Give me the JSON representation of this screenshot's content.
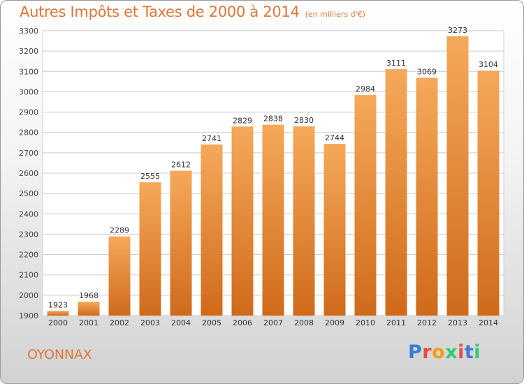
{
  "title": "Autres Impôts et Taxes de 2000 à 2014",
  "title_unit": "(en milliers d'€)",
  "location": "OYONNAX",
  "logo": {
    "text": "Proxiti",
    "letter_colors": [
      "#3a7bd5",
      "#e84c3d",
      "#f39c12",
      "#2ecc71",
      "#e84c3d",
      "#3a7bd5",
      "#2ecc71"
    ]
  },
  "colors": {
    "bar_light": "#f5a95a",
    "bar_dark": "#d06a1b",
    "grid": "#cccccc",
    "accent": "#e0763a"
  },
  "chart_data": {
    "type": "bar",
    "categories": [
      "2000",
      "2001",
      "2002",
      "2003",
      "2004",
      "2005",
      "2006",
      "2007",
      "2008",
      "2009",
      "2010",
      "2011",
      "2012",
      "2013",
      "2014"
    ],
    "values": [
      1923,
      1968,
      2289,
      2555,
      2612,
      2741,
      2829,
      2838,
      2830,
      2744,
      2984,
      3111,
      3069,
      3273,
      3104
    ],
    "ylim": [
      1900,
      3300
    ],
    "yticks": [
      1900,
      2000,
      2100,
      2200,
      2300,
      2400,
      2500,
      2600,
      2700,
      2800,
      2900,
      3000,
      3100,
      3200,
      3300
    ],
    "grid": true,
    "xlabel": "",
    "ylabel": ""
  }
}
